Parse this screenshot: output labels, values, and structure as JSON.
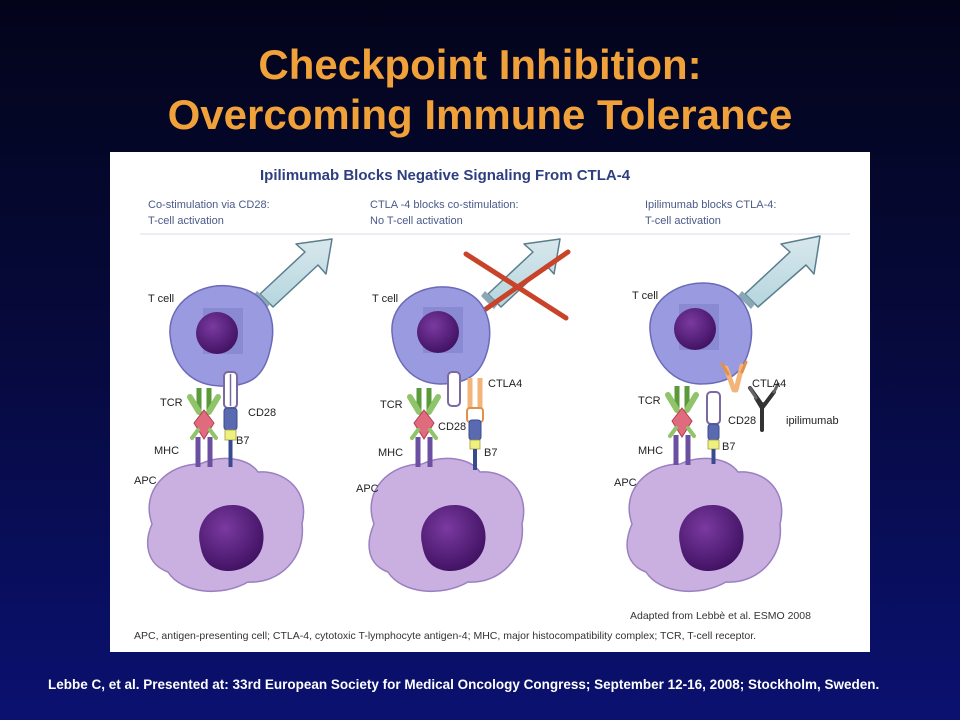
{
  "slide": {
    "title_line1": "Checkpoint Inhibition:",
    "title_line2": "Overcoming Immune Tolerance",
    "citation": "Lebbe C, et al. Presented at: 33rd European Society for Medical Oncology Congress; September 12-16, 2008; Stockholm, Sweden."
  },
  "figure": {
    "title": "Ipilimumab Blocks Negative Signaling From CTLA-4",
    "panels": [
      {
        "caption_line1": "Co-stimulation via CD28:",
        "caption_line2": "T-cell activation",
        "labels": {
          "t_cell": "T cell",
          "tcr": "TCR",
          "cd28": "CD28",
          "mhc": "MHC",
          "b7": "B7",
          "apc": "APC"
        }
      },
      {
        "caption_line1": "CTLA -4 blocks co-stimulation:",
        "caption_line2": "No T-cell activation",
        "labels": {
          "t_cell": "T cell",
          "tcr": "TCR",
          "cd28": "CD28",
          "ctla4": "CTLA4",
          "mhc": "MHC",
          "b7": "B7",
          "apc": "APC"
        }
      },
      {
        "caption_line1": "Ipilimumab blocks CTLA-4:",
        "caption_line2": "T-cell activation",
        "labels": {
          "t_cell": "T cell",
          "tcr": "TCR",
          "cd28": "CD28",
          "ctla4": "CTLA4",
          "ipilimumab": "ipilimumab",
          "mhc": "MHC",
          "b7": "B7",
          "apc": "APC"
        }
      }
    ],
    "adapted_from": "Adapted from Lebbè et al. ESMO 2008",
    "footnote": "APC, antigen-presenting cell; CTLA-4, cytotoxic T-lymphocyte antigen-4; MHC, major histocompatibility complex; TCR, T-cell receptor."
  },
  "colors": {
    "title": "#f0a13a",
    "t_cell": "#9a9ae0",
    "apc": "#c9b0e0",
    "nucleus": "#4a1a6e",
    "arrow": "#c9e4ec",
    "tcr": "#8fc46a",
    "mhc_peptide": "#e06b7e",
    "ctla4": "#f3b47a",
    "cross": "#c8432a"
  }
}
